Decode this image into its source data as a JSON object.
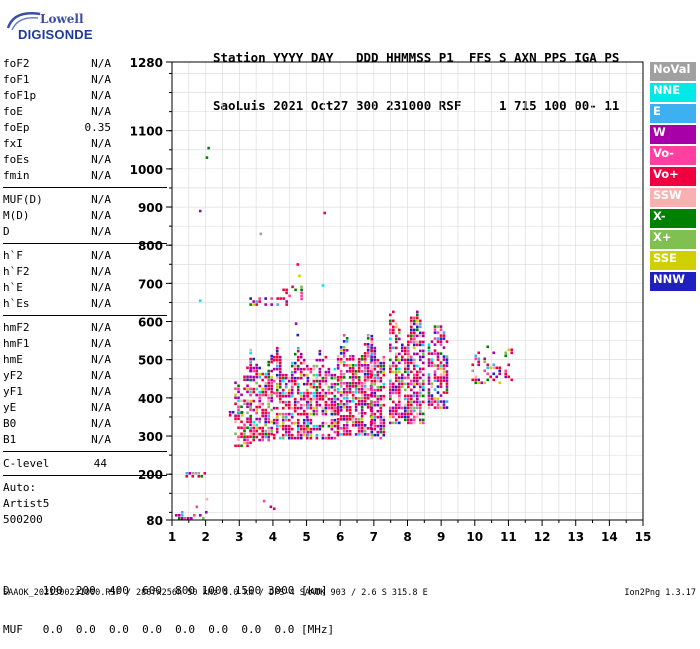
{
  "logo": {
    "line1": "Lowell",
    "line2": "DIGISONDE"
  },
  "header": {
    "line1": "Station YYYY DAY   DDD HHMMSS P1  FFS S AXN PPS IGA PS",
    "line2": "SaoLuis 2021 Oct27 300 231000 RSF     1 715 100 00- 11"
  },
  "params": {
    "group1": [
      {
        "name": "foF2",
        "value": "N/A"
      },
      {
        "name": "foF1",
        "value": "N/A"
      },
      {
        "name": "foF1p",
        "value": "N/A"
      },
      {
        "name": "foE",
        "value": "N/A"
      },
      {
        "name": "foEp",
        "value": "0.35"
      },
      {
        "name": "fxI",
        "value": "N/A"
      },
      {
        "name": "foEs",
        "value": "N/A"
      },
      {
        "name": "fmin",
        "value": "N/A"
      }
    ],
    "group2": [
      {
        "name": "MUF(D)",
        "value": "N/A"
      },
      {
        "name": "M(D)",
        "value": "N/A"
      },
      {
        "name": "D",
        "value": "N/A"
      }
    ],
    "group3": [
      {
        "name": "h`F",
        "value": "N/A"
      },
      {
        "name": "h`F2",
        "value": "N/A"
      },
      {
        "name": "h`E",
        "value": "N/A"
      },
      {
        "name": "h`Es",
        "value": "N/A"
      }
    ],
    "group4": [
      {
        "name": "hmF2",
        "value": "N/A"
      },
      {
        "name": "hmF1",
        "value": "N/A"
      },
      {
        "name": "hmE",
        "value": "N/A"
      },
      {
        "name": "yF2",
        "value": "N/A"
      },
      {
        "name": "yF1",
        "value": "N/A"
      },
      {
        "name": "yE",
        "value": "N/A"
      },
      {
        "name": "B0",
        "value": "N/A"
      },
      {
        "name": "B1",
        "value": "N/A"
      }
    ],
    "clevel": {
      "name": "C-level",
      "value": "44"
    },
    "auto": [
      "Auto:",
      "Artist5",
      "500200"
    ]
  },
  "legend": [
    {
      "label": "NoVal",
      "color": "#a0a0a0"
    },
    {
      "label": "NNE",
      "color": "#00e8e8"
    },
    {
      "label": "E",
      "color": "#3cb0f0"
    },
    {
      "label": "W",
      "color": "#a800a8"
    },
    {
      "label": "Vo-",
      "color": "#ff40a0"
    },
    {
      "label": "Vo+",
      "color": "#f00040"
    },
    {
      "label": "SSW",
      "color": "#f8b0b0"
    },
    {
      "label": "X-",
      "color": "#008000"
    },
    {
      "label": "X+",
      "color": "#80c050"
    },
    {
      "label": "SSE",
      "color": "#d0d000"
    },
    {
      "label": "NNW",
      "color": "#2020c0"
    }
  ],
  "bottom": {
    "line1": "D     100  200  400  600  800 1000 1500 3000 [km]",
    "line2": "MUF   0.0  0.0  0.0  0.0  0.0  0.0  0.0  0.0 [MHz]"
  },
  "footer": {
    "left": "SAAOK_2021300231000.RSF / 280fx256h 50 kHz 5.0 km / DPS-4 SAAOK 903 / 2.6 S 315.8 E",
    "right": "Ion2Png 1.3.17"
  },
  "chart_data": {
    "type": "scatter",
    "xlim": [
      1,
      15
    ],
    "x_ticks": [
      1,
      2,
      3,
      4,
      5,
      6,
      7,
      8,
      9,
      10,
      11,
      12,
      13,
      14,
      15
    ],
    "ylim": [
      80,
      1280
    ],
    "y_ticks": [
      80,
      200,
      300,
      400,
      500,
      600,
      700,
      800,
      900,
      1000,
      1100,
      1280
    ],
    "grid": true,
    "echo_regions": [
      {
        "x": [
          2.85,
          3.3
        ],
        "y": [
          270,
          470
        ],
        "density": 0.55
      },
      {
        "x": [
          3.3,
          4.0
        ],
        "y": [
          285,
          500
        ],
        "density": 0.65
      },
      {
        "x": [
          4.0,
          5.0
        ],
        "y": [
          290,
          510
        ],
        "density": 0.6
      },
      {
        "x": [
          5.0,
          5.9
        ],
        "y": [
          290,
          505
        ],
        "density": 0.6
      },
      {
        "x": [
          5.9,
          6.9
        ],
        "y": [
          300,
          530
        ],
        "density": 0.7
      },
      {
        "x": [
          6.9,
          7.3
        ],
        "y": [
          290,
          540
        ],
        "density": 0.8
      },
      {
        "x": [
          7.45,
          8.5
        ],
        "y": [
          330,
          600
        ],
        "density": 0.65
      },
      {
        "x": [
          8.6,
          9.2
        ],
        "y": [
          370,
          575
        ],
        "density": 0.6
      },
      {
        "x": [
          9.9,
          11.1
        ],
        "y": [
          435,
          525
        ],
        "density": 0.3
      },
      {
        "x": [
          3.3,
          4.4
        ],
        "y": [
          640,
          660
        ],
        "density": 0.3
      },
      {
        "x": [
          4.1,
          4.9
        ],
        "y": [
          655,
          690
        ],
        "density": 0.25
      },
      {
        "x": [
          1.0,
          2.0
        ],
        "y": [
          80,
          95
        ],
        "density": 0.5
      },
      {
        "x": [
          1.4,
          2.0
        ],
        "y": [
          190,
          200
        ],
        "density": 0.4
      },
      {
        "x": [
          2.6,
          3.2
        ],
        "y": [
          350,
          360
        ],
        "density": 0.4
      }
    ]
  }
}
